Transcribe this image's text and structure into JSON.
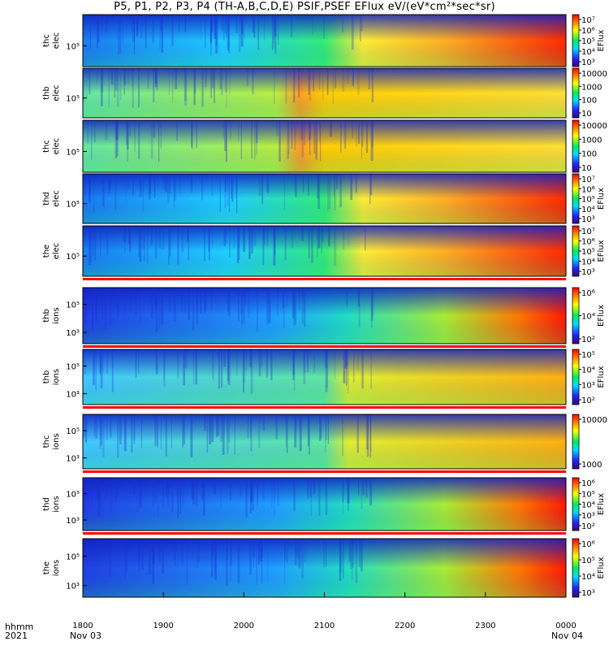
{
  "title": "P5, P1, P2, P3, P4 (TH-A,B,C,D,E) PSIF,PSEF EFlux eV/(eV*cm²*sec*sr)",
  "footer": {
    "label_line1": "hhmm",
    "label_line2": "2021",
    "start_date": "Nov 03",
    "end_date": "Nov 04"
  },
  "chart_data": {
    "type": "heatmap",
    "x_ticks": [
      "1800",
      "1900",
      "2000",
      "2100",
      "2200",
      "2300",
      "0000"
    ],
    "x_range_hours": [
      18,
      24
    ],
    "colormap": "rainbow (purple-blue-cyan-green-yellow-red)",
    "panels": [
      {
        "label": "thc elec",
        "probe": "thc",
        "species": "elec",
        "y_ticks": [
          "10⁵"
        ],
        "colorbar_ticks": [
          "10⁷",
          "10⁶",
          "10⁵",
          "10⁴",
          "10³"
        ],
        "colorbar_label": "EFlux"
      },
      {
        "label": "thb elec",
        "probe": "thb",
        "species": "elec",
        "y_ticks": [
          "10⁵"
        ],
        "colorbar_ticks": [
          "10000",
          "1000",
          "100",
          "10"
        ],
        "colorbar_label": ""
      },
      {
        "label": "thc elec",
        "probe": "thc",
        "species": "elec",
        "y_ticks": [
          "10⁵"
        ],
        "colorbar_ticks": [
          "10000",
          "1000",
          "100",
          "10"
        ],
        "colorbar_label": ""
      },
      {
        "label": "thd elec",
        "probe": "thd",
        "species": "elec",
        "y_ticks": [
          "10⁵"
        ],
        "colorbar_ticks": [
          "10⁷",
          "10⁶",
          "10⁵",
          "10⁴",
          "10³"
        ],
        "colorbar_label": "EFlux"
      },
      {
        "label": "the elec",
        "probe": "the",
        "species": "elec",
        "y_ticks": [
          "10⁵"
        ],
        "colorbar_ticks": [
          "10⁷",
          "10⁶",
          "10⁵",
          "10⁴",
          "10³"
        ],
        "colorbar_label": "EFlux"
      },
      {
        "label": "thb ions",
        "probe": "thb",
        "species": "ions",
        "y_ticks": [
          "10⁵",
          "10³"
        ],
        "colorbar_ticks": [
          "10⁶",
          "10⁴",
          "10²"
        ],
        "colorbar_label": "EFlux"
      },
      {
        "label": "thb ions",
        "probe": "thb",
        "species": "ions",
        "y_ticks": [
          "10⁵",
          "10³"
        ],
        "colorbar_ticks": [
          "10⁵",
          "10⁴",
          "10³",
          "10²"
        ],
        "colorbar_label": "EFlux"
      },
      {
        "label": "thc ions",
        "probe": "thc",
        "species": "ions",
        "y_ticks": [
          "10⁵",
          "10³"
        ],
        "colorbar_ticks": [
          "10000",
          "1000"
        ],
        "colorbar_label": ""
      },
      {
        "label": "thd ions",
        "probe": "thd",
        "species": "ions",
        "y_ticks": [
          "10⁵",
          "10³"
        ],
        "colorbar_ticks": [
          "10⁶",
          "10⁵",
          "10⁴",
          "10³",
          "10²"
        ],
        "colorbar_label": "EFlux"
      },
      {
        "label": "the ions",
        "probe": "the",
        "species": "ions",
        "y_ticks": [
          "10⁵",
          "10³"
        ],
        "colorbar_ticks": [
          "10⁶",
          "10⁵",
          "10⁴",
          "10³"
        ],
        "colorbar_label": "EFlux"
      }
    ]
  }
}
